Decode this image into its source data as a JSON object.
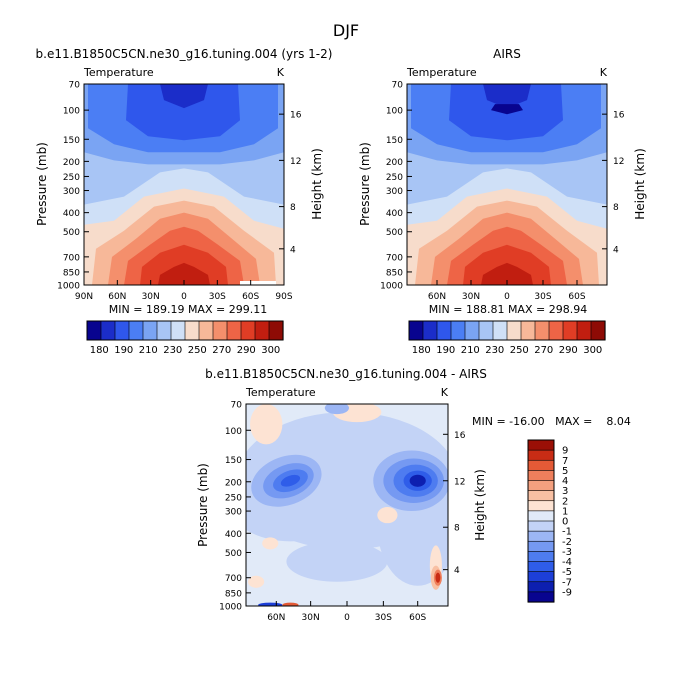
{
  "figure": {
    "title": "DJF"
  },
  "chart_data": [
    {
      "type": "heatmap",
      "name": "panel-model",
      "title": "b.e11.B1850C5CN.ne30_g16.tuning.004 (yrs 1-2)",
      "left_label": "Temperature",
      "right_label": "K",
      "ylabel": "Pressure (mb)",
      "y2label": "Height (km)",
      "x_ticks": [
        "90N",
        "60N",
        "30N",
        "0",
        "30S",
        "60S",
        "90S"
      ],
      "y_ticks": [
        "70",
        "100",
        "150",
        "200",
        "250",
        "300",
        "400",
        "500",
        "700",
        "850",
        "1000"
      ],
      "y2_ticks": [
        "16",
        "12",
        "8",
        "4"
      ],
      "stats": "MIN = 189.19   MAX = 299.11",
      "colorbar_labels": [
        "180",
        "190",
        "210",
        "230",
        "250",
        "270",
        "290",
        "300"
      ]
    },
    {
      "type": "heatmap",
      "name": "panel-obs",
      "title": "AIRS",
      "left_label": "Temperature",
      "right_label": "K",
      "ylabel": "Pressure (mb)",
      "y2label": "Height (km)",
      "x_ticks": [
        "60N",
        "30N",
        "0",
        "30S",
        "60S"
      ],
      "y_ticks": [
        "70",
        "100",
        "150",
        "200",
        "250",
        "300",
        "400",
        "500",
        "700",
        "850",
        "1000"
      ],
      "y2_ticks": [
        "16",
        "12",
        "8",
        "4"
      ],
      "stats": "MIN = 188.81   MAX = 298.94",
      "colorbar_labels": [
        "180",
        "190",
        "210",
        "230",
        "250",
        "270",
        "290",
        "300"
      ]
    },
    {
      "type": "heatmap",
      "name": "panel-diff",
      "title": "b.e11.B1850C5CN.ne30_g16.tuning.004 - AIRS",
      "left_label": "Temperature",
      "right_label": "K",
      "ylabel": "Pressure (mb)",
      "y2label": "Height (km)",
      "x_ticks": [
        "60N",
        "30N",
        "0",
        "30S",
        "60S"
      ],
      "y_ticks": [
        "70",
        "100",
        "150",
        "200",
        "250",
        "300",
        "400",
        "500",
        "700",
        "850",
        "1000"
      ],
      "y2_ticks": [
        "16",
        "12",
        "8",
        "4"
      ],
      "stats": "MIN = -16.00   MAX =    8.04",
      "colorbar_labels": [
        "9",
        "7",
        "5",
        "4",
        "3",
        "2",
        "1",
        "0",
        "-1",
        "-2",
        "-3",
        "-4",
        "-5",
        "-7",
        "-9"
      ]
    }
  ],
  "colors": {
    "temp_scale": [
      "#08048f",
      "#1b2dc9",
      "#2f57ec",
      "#4b7ef4",
      "#7aa4f3",
      "#a8c5f5",
      "#cfe0f7",
      "#f7dccb",
      "#f7b899",
      "#f48f6c",
      "#ee6446",
      "#e03d25",
      "#c11e10",
      "#8e0b05"
    ],
    "diff_scale": [
      "#08048f",
      "#0d1fb0",
      "#1d3fd8",
      "#2f5de9",
      "#4e7cf0",
      "#7599f2",
      "#9cb6f4",
      "#c3d3f6",
      "#e1eaf8",
      "#fde3d3",
      "#f8c0a3",
      "#f4a07f",
      "#ef7f5c",
      "#e45a36",
      "#c92c15",
      "#9a0f06"
    ]
  }
}
